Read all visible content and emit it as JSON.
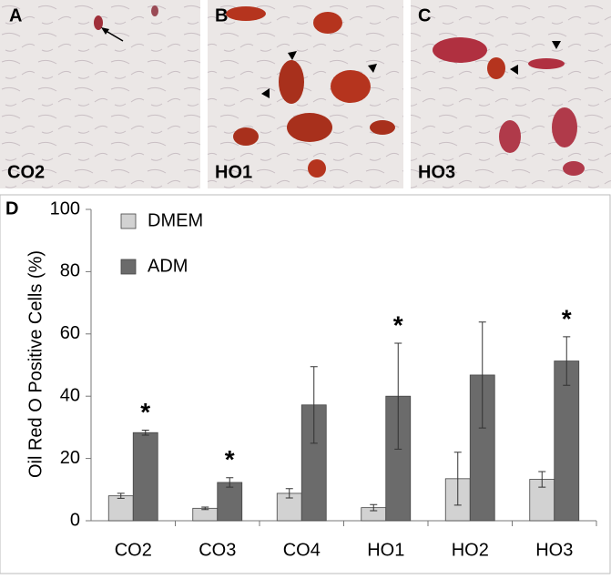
{
  "panels": [
    {
      "letter": "A",
      "caption": "CO2"
    },
    {
      "letter": "B",
      "caption": "HO1"
    },
    {
      "letter": "C",
      "caption": "HO3"
    }
  ],
  "chart_data": {
    "type": "bar",
    "panel_label": "D",
    "y_label": "Oil Red O Positive Cells (%)",
    "categories": [
      "CO2",
      "CO3",
      "CO4",
      "HO1",
      "HO2",
      "HO3"
    ],
    "series": [
      {
        "name": "DMEM",
        "color": "#d2d2d2",
        "values": [
          8,
          4,
          8.8,
          4.2,
          13.5,
          13.3
        ],
        "errors": [
          0.8,
          0.4,
          1.5,
          1,
          8.5,
          2.5
        ]
      },
      {
        "name": "ADM",
        "color": "#6b6b6b",
        "values": [
          28.3,
          12.3,
          37.2,
          40,
          46.8,
          51.3
        ],
        "errors": [
          0.8,
          1.5,
          12.3,
          17,
          17,
          7.8
        ],
        "value_labels": [
          "*",
          "*",
          null,
          "*",
          null,
          "*"
        ]
      }
    ],
    "ylim": [
      0,
      100
    ],
    "yticks": [
      0,
      20,
      40,
      60,
      80,
      100
    ],
    "grid": false,
    "legend": "top-left"
  }
}
